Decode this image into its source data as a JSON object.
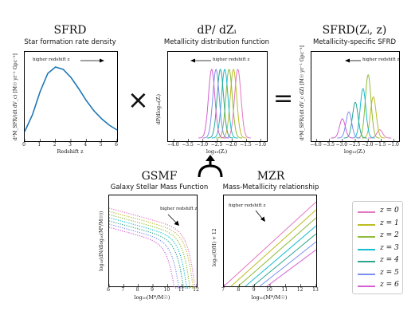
{
  "colors": [
    "#e377c2",
    "#bcbd22",
    "#8fbc3a",
    "#17becf",
    "#2ca58d",
    "#7b8ff0",
    "#d65fd0"
  ],
  "sfrd": {
    "title": "SFRD",
    "subtitle": "Star formation rate density",
    "ylabel": "d²M_SFR/(dt dV_c) [M☉ yr⁻¹ Gpc⁻³]",
    "xlabel": "Redshift z",
    "annotation": "higher redshift z",
    "xticks": [
      "0",
      "1",
      "2",
      "3",
      "4",
      "5",
      "6"
    ]
  },
  "dpdz": {
    "title": "dP/ dZᵢ",
    "subtitle": "Metallicity distribution function",
    "ylabel": "dP/dlog₁₀(Zᵢ)",
    "xlabel": "log₁₀(Zᵢ)",
    "annotation": "higher redshift z",
    "xticks": [
      "−4.0",
      "−3.5",
      "−3.0",
      "−2.5",
      "−2.0",
      "−1.5",
      "−1.0"
    ]
  },
  "mssfr": {
    "title": "SFRD(Zᵢ, z)",
    "subtitle": "Metallicity-specific SFRD",
    "ylabel": "d³M_SFR/(dt dV_c dZ) [M☉ yr⁻¹ Gpc⁻³]",
    "xlabel": "log₁₀(Zᵢ)",
    "annotation": "higher redshift z",
    "xticks": [
      "−4.0",
      "−3.5",
      "−3.0",
      "−2.5",
      "−2.0",
      "−1.5",
      "−1.0"
    ]
  },
  "gsmf": {
    "title": "GSMF",
    "subtitle": "Galaxy Stellar Mass Function",
    "ylabel": "log₁₀(dN/dlog₁₀(M*/M☉))",
    "xlabel": "log₁₀(M*/M☉)",
    "annotation": "higher redshift z",
    "xticks": [
      "6",
      "7",
      "8",
      "9",
      "10",
      "11",
      "12"
    ]
  },
  "mzr": {
    "title": "MZR",
    "subtitle": "Mass-Metallicity relationship",
    "ylabel": "log₁₀(O/H) + 12",
    "xlabel": "log₁₀(M*/M☉)",
    "annotation": "higher redshift z",
    "xticks": [
      "7",
      "8",
      "9",
      "10",
      "11",
      "12",
      "13"
    ]
  },
  "operators": {
    "times": "×",
    "equals": "="
  },
  "legend": [
    {
      "label": "z = 0"
    },
    {
      "label": "z = 1"
    },
    {
      "label": "z = 2"
    },
    {
      "label": "z = 3"
    },
    {
      "label": "z = 4"
    },
    {
      "label": "z = 5"
    },
    {
      "label": "z = 6"
    }
  ],
  "chart_data": [
    {
      "type": "line",
      "title": "SFRD",
      "xlabel": "Redshift z",
      "ylabel": "d²M_SFR/(dt dV_c) [M☉ yr⁻¹ Gpc⁻³]",
      "xlim": [
        0,
        6
      ],
      "x": [
        0,
        0.5,
        1,
        1.5,
        2,
        2.5,
        3,
        3.5,
        4,
        4.5,
        5,
        5.5,
        6
      ],
      "series": [
        {
          "values": [
            0.12,
            0.33,
            0.62,
            0.85,
            0.93,
            0.9,
            0.8,
            0.66,
            0.51,
            0.38,
            0.28,
            0.2,
            0.14
          ]
        }
      ]
    },
    {
      "type": "line",
      "title": "dP/dZᵢ",
      "xlabel": "log₁₀(Zᵢ)",
      "xlim": [
        -4.2,
        -0.8
      ],
      "gaussians": [
        {
          "z": 0,
          "mu": -1.8,
          "sigma": 0.11
        },
        {
          "z": 1,
          "mu": -1.95,
          "sigma": 0.11
        },
        {
          "z": 2,
          "mu": -2.1,
          "sigma": 0.11
        },
        {
          "z": 3,
          "mu": -2.25,
          "sigma": 0.11
        },
        {
          "z": 4,
          "mu": -2.4,
          "sigma": 0.11
        },
        {
          "z": 5,
          "mu": -2.55,
          "sigma": 0.11
        },
        {
          "z": 6,
          "mu": -2.7,
          "sigma": 0.11
        }
      ]
    },
    {
      "type": "line",
      "title": "SFRD(Zᵢ, z)",
      "xlabel": "log₁₀(Zᵢ)",
      "xlim": [
        -4.2,
        -0.8
      ],
      "gaussians": [
        {
          "z": 0,
          "mu": -1.55,
          "sigma": 0.11,
          "amp": 0.12
        },
        {
          "z": 1,
          "mu": -1.8,
          "sigma": 0.11,
          "amp": 0.6
        },
        {
          "z": 2,
          "mu": -2.0,
          "sigma": 0.11,
          "amp": 0.92
        },
        {
          "z": 3,
          "mu": -2.2,
          "sigma": 0.11,
          "amp": 0.72
        },
        {
          "z": 4,
          "mu": -2.5,
          "sigma": 0.11,
          "amp": 0.52
        },
        {
          "z": 5,
          "mu": -2.75,
          "sigma": 0.11,
          "amp": 0.38
        },
        {
          "z": 6,
          "mu": -3.0,
          "sigma": 0.11,
          "amp": 0.28
        }
      ]
    },
    {
      "type": "line",
      "title": "GSMF",
      "xlabel": "log₁₀(M*/M☉)",
      "xlim": [
        6,
        12
      ],
      "mstar": [
        11.6,
        11.5,
        11.3,
        11.1,
        10.9,
        10.6,
        10.3
      ]
    },
    {
      "type": "line",
      "title": "MZR",
      "xlabel": "log₁₀(M*/M☉)",
      "ylabel": "log₁₀(O/H) + 12",
      "xlim": [
        7,
        13
      ],
      "offsets": [
        0,
        -1,
        -2,
        -3,
        -4,
        -5,
        -6
      ]
    }
  ]
}
